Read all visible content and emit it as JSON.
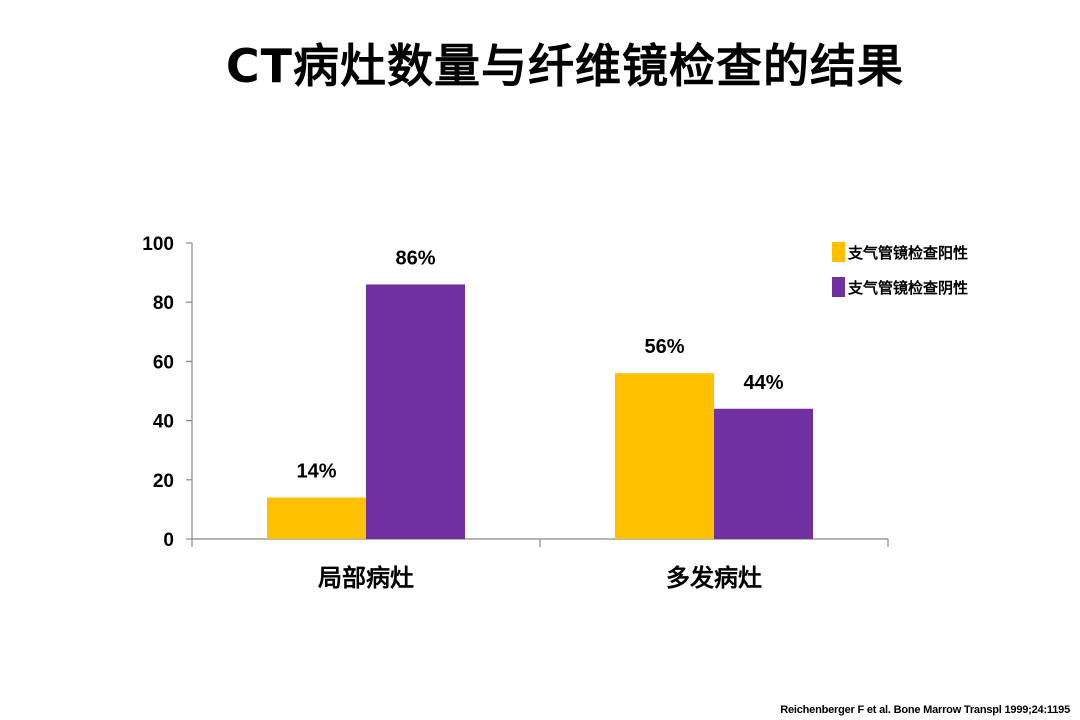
{
  "title": "CT病灶数量与纤维镜检查的结果",
  "citation": "Reichenberger F et al. Bone Marrow Transpl 1999;24:1195",
  "chart_data": {
    "type": "bar",
    "categories": [
      "局部病灶",
      "多发病灶"
    ],
    "series": [
      {
        "name": "支气管镜检查阳性",
        "color": "#FFC000",
        "values": [
          14,
          56
        ],
        "labels": [
          "14%",
          "56%"
        ]
      },
      {
        "name": "支气管镜检查阴性",
        "color": "#7030A0",
        "values": [
          86,
          44
        ],
        "labels": [
          "86%",
          "44%"
        ]
      }
    ],
    "ylim": [
      0,
      100
    ],
    "yticks": [
      "0",
      "20",
      "40",
      "60",
      "80",
      "100"
    ],
    "ytick_values": [
      0,
      20,
      40,
      60,
      80,
      100
    ],
    "grid": false,
    "legend_position": "top-right"
  }
}
